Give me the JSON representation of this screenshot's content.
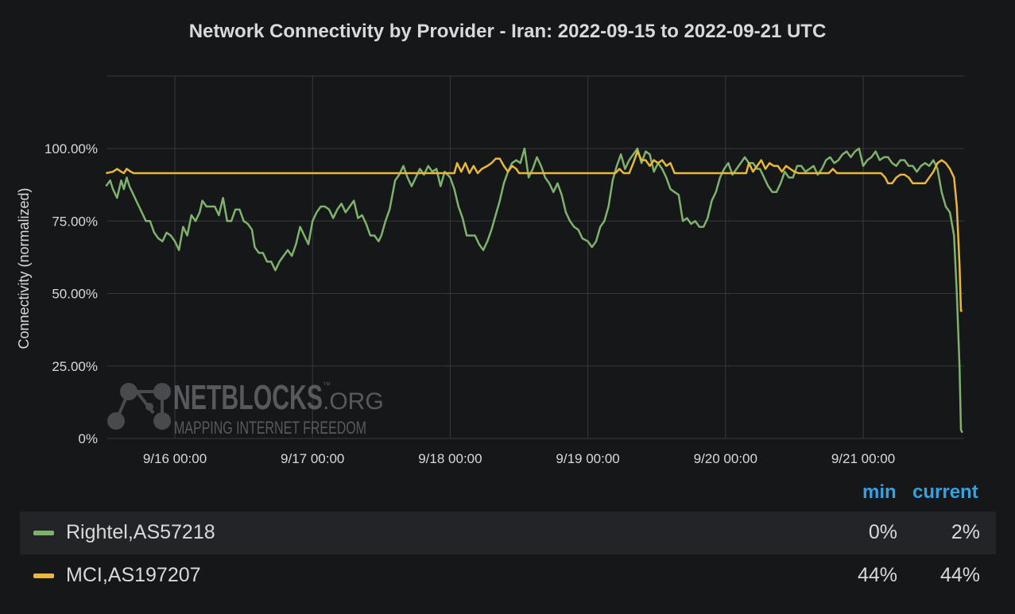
{
  "chart_data": {
    "type": "line",
    "title": "Network Connectivity by Provider - Iran: 2022-09-15 to 2022-09-21 UTC",
    "ylabel": "Connectivity (normalized)",
    "xlabel": "",
    "x_unit": "day (UTC, September 2022)",
    "xlim": [
      15.5,
      21.75
    ],
    "ylim": [
      0,
      125
    ],
    "grid": true,
    "x_ticks": [
      {
        "value": 16,
        "label": "9/16 00:00"
      },
      {
        "value": 17,
        "label": "9/17 00:00"
      },
      {
        "value": 18,
        "label": "9/18 00:00"
      },
      {
        "value": 19,
        "label": "9/19 00:00"
      },
      {
        "value": 20,
        "label": "9/20 00:00"
      },
      {
        "value": 21,
        "label": "9/21 00:00"
      }
    ],
    "y_ticks": [
      {
        "value": 0,
        "label": "0%"
      },
      {
        "value": 25,
        "label": "25.00%"
      },
      {
        "value": 50,
        "label": "50.00%"
      },
      {
        "value": 75,
        "label": "75.00%"
      },
      {
        "value": 100,
        "label": "100.00%"
      }
    ],
    "series": [
      {
        "name": "Rightel,AS57218",
        "color": "#7eb26d",
        "points": [
          [
            15.5,
            87
          ],
          [
            15.53,
            89
          ],
          [
            15.55,
            86
          ],
          [
            15.58,
            83
          ],
          [
            15.61,
            89
          ],
          [
            15.63,
            86
          ],
          [
            15.65,
            90
          ],
          [
            15.67,
            87
          ],
          [
            15.7,
            84
          ],
          [
            15.73,
            81
          ],
          [
            15.76,
            78
          ],
          [
            15.79,
            75
          ],
          [
            15.82,
            75
          ],
          [
            15.85,
            71
          ],
          [
            15.88,
            69
          ],
          [
            15.91,
            68
          ],
          [
            15.94,
            71
          ],
          [
            15.97,
            70
          ],
          [
            16.0,
            68
          ],
          [
            16.03,
            65
          ],
          [
            16.06,
            73
          ],
          [
            16.09,
            70
          ],
          [
            16.12,
            77
          ],
          [
            16.15,
            75
          ],
          [
            16.18,
            78
          ],
          [
            16.2,
            82
          ],
          [
            16.23,
            80
          ],
          [
            16.26,
            80
          ],
          [
            16.29,
            80
          ],
          [
            16.32,
            77
          ],
          [
            16.35,
            83
          ],
          [
            16.38,
            75
          ],
          [
            16.41,
            75
          ],
          [
            16.44,
            79
          ],
          [
            16.47,
            79
          ],
          [
            16.5,
            75
          ],
          [
            16.53,
            74
          ],
          [
            16.56,
            72
          ],
          [
            16.58,
            66
          ],
          [
            16.61,
            64
          ],
          [
            16.64,
            64
          ],
          [
            16.67,
            61
          ],
          [
            16.7,
            61
          ],
          [
            16.73,
            58
          ],
          [
            16.76,
            61
          ],
          [
            16.79,
            63
          ],
          [
            16.82,
            65
          ],
          [
            16.85,
            63
          ],
          [
            16.88,
            67
          ],
          [
            16.91,
            73
          ],
          [
            16.94,
            70
          ],
          [
            16.97,
            67
          ],
          [
            17.0,
            75
          ],
          [
            17.03,
            78
          ],
          [
            17.06,
            80
          ],
          [
            17.09,
            80
          ],
          [
            17.12,
            79
          ],
          [
            17.15,
            76
          ],
          [
            17.18,
            79
          ],
          [
            17.21,
            81
          ],
          [
            17.24,
            78
          ],
          [
            17.27,
            80
          ],
          [
            17.3,
            82
          ],
          [
            17.33,
            76
          ],
          [
            17.36,
            77
          ],
          [
            17.39,
            74
          ],
          [
            17.42,
            70
          ],
          [
            17.45,
            70
          ],
          [
            17.48,
            68
          ],
          [
            17.5,
            70
          ],
          [
            17.53,
            75
          ],
          [
            17.56,
            79
          ],
          [
            17.6,
            89
          ],
          [
            17.63,
            91
          ],
          [
            17.66,
            94
          ],
          [
            17.69,
            90
          ],
          [
            17.72,
            87
          ],
          [
            17.75,
            90
          ],
          [
            17.78,
            93
          ],
          [
            17.81,
            91
          ],
          [
            17.84,
            94
          ],
          [
            17.87,
            92
          ],
          [
            17.9,
            93
          ],
          [
            17.93,
            87
          ],
          [
            17.96,
            92
          ],
          [
            18.0,
            90
          ],
          [
            18.03,
            86
          ],
          [
            18.06,
            80
          ],
          [
            18.09,
            76
          ],
          [
            18.12,
            70
          ],
          [
            18.15,
            70
          ],
          [
            18.18,
            70
          ],
          [
            18.21,
            67
          ],
          [
            18.24,
            65
          ],
          [
            18.27,
            68
          ],
          [
            18.3,
            72
          ],
          [
            18.33,
            77
          ],
          [
            18.36,
            82
          ],
          [
            18.39,
            88
          ],
          [
            18.42,
            92
          ],
          [
            18.45,
            95
          ],
          [
            18.48,
            96
          ],
          [
            18.51,
            95
          ],
          [
            18.54,
            100
          ],
          [
            18.57,
            90
          ],
          [
            18.6,
            93
          ],
          [
            18.63,
            97
          ],
          [
            18.66,
            94
          ],
          [
            18.69,
            90
          ],
          [
            18.72,
            88
          ],
          [
            18.75,
            85
          ],
          [
            18.78,
            88
          ],
          [
            18.81,
            84
          ],
          [
            18.84,
            78
          ],
          [
            18.87,
            75
          ],
          [
            18.9,
            73
          ],
          [
            18.93,
            72
          ],
          [
            18.96,
            69
          ],
          [
            19.0,
            68
          ],
          [
            19.03,
            66
          ],
          [
            19.06,
            68
          ],
          [
            19.09,
            73
          ],
          [
            19.12,
            75
          ],
          [
            19.15,
            80
          ],
          [
            19.18,
            89
          ],
          [
            19.21,
            94
          ],
          [
            19.24,
            98
          ],
          [
            19.27,
            93
          ],
          [
            19.3,
            96
          ],
          [
            19.33,
            98
          ],
          [
            19.36,
            100
          ],
          [
            19.39,
            95
          ],
          [
            19.42,
            99
          ],
          [
            19.45,
            98
          ],
          [
            19.48,
            92
          ],
          [
            19.51,
            95
          ],
          [
            19.54,
            93
          ],
          [
            19.57,
            90
          ],
          [
            19.6,
            86
          ],
          [
            19.63,
            85
          ],
          [
            19.66,
            84
          ],
          [
            19.69,
            75
          ],
          [
            19.72,
            76
          ],
          [
            19.75,
            74
          ],
          [
            19.78,
            75
          ],
          [
            19.81,
            73
          ],
          [
            19.84,
            73
          ],
          [
            19.87,
            76
          ],
          [
            19.9,
            82
          ],
          [
            19.93,
            85
          ],
          [
            19.96,
            90
          ],
          [
            19.99,
            93
          ],
          [
            20.02,
            95
          ],
          [
            20.05,
            91
          ],
          [
            20.08,
            93
          ],
          [
            20.11,
            95
          ],
          [
            20.14,
            97
          ],
          [
            20.17,
            95
          ],
          [
            20.2,
            95
          ],
          [
            20.23,
            93
          ],
          [
            20.25,
            93
          ],
          [
            20.28,
            90
          ],
          [
            20.31,
            87
          ],
          [
            20.34,
            85
          ],
          [
            20.37,
            85
          ],
          [
            20.4,
            88
          ],
          [
            20.43,
            92
          ],
          [
            20.46,
            90
          ],
          [
            20.49,
            90
          ],
          [
            20.52,
            94
          ],
          [
            20.55,
            94
          ],
          [
            20.58,
            92
          ],
          [
            20.61,
            93
          ],
          [
            20.64,
            94
          ],
          [
            20.67,
            91
          ],
          [
            20.7,
            93
          ],
          [
            20.73,
            96
          ],
          [
            20.76,
            97
          ],
          [
            20.79,
            95
          ],
          [
            20.82,
            96
          ],
          [
            20.85,
            98
          ],
          [
            20.88,
            99
          ],
          [
            20.91,
            97
          ],
          [
            20.94,
            99
          ],
          [
            20.97,
            100
          ],
          [
            21.0,
            94
          ],
          [
            21.03,
            96
          ],
          [
            21.06,
            97
          ],
          [
            21.09,
            99
          ],
          [
            21.12,
            96
          ],
          [
            21.15,
            97
          ],
          [
            21.18,
            97
          ],
          [
            21.21,
            95
          ],
          [
            21.24,
            94
          ],
          [
            21.27,
            96
          ],
          [
            21.3,
            96
          ],
          [
            21.33,
            94
          ],
          [
            21.36,
            94
          ],
          [
            21.39,
            92
          ],
          [
            21.42,
            94
          ],
          [
            21.45,
            95
          ],
          [
            21.48,
            94
          ],
          [
            21.51,
            96
          ],
          [
            21.54,
            93
          ],
          [
            21.57,
            85
          ],
          [
            21.6,
            80
          ],
          [
            21.63,
            78
          ],
          [
            21.66,
            70
          ],
          [
            21.68,
            50
          ],
          [
            21.7,
            25
          ],
          [
            21.71,
            3
          ],
          [
            21.72,
            2
          ]
        ]
      },
      {
        "name": "MCI,AS197207",
        "color": "#eab839",
        "points": [
          [
            15.5,
            91.5
          ],
          [
            15.55,
            92
          ],
          [
            15.58,
            93
          ],
          [
            15.61,
            92
          ],
          [
            15.63,
            91.5
          ],
          [
            15.65,
            93
          ],
          [
            15.68,
            92
          ],
          [
            15.7,
            91.5
          ],
          [
            16.0,
            91.5
          ],
          [
            16.5,
            91.5
          ],
          [
            17.0,
            91.5
          ],
          [
            17.5,
            91.5
          ],
          [
            18.0,
            91.5
          ],
          [
            18.03,
            91.5
          ],
          [
            18.05,
            95
          ],
          [
            18.08,
            92
          ],
          [
            18.11,
            95
          ],
          [
            18.14,
            91.5
          ],
          [
            18.17,
            94
          ],
          [
            18.2,
            91.5
          ],
          [
            18.23,
            93
          ],
          [
            18.27,
            94
          ],
          [
            18.3,
            95
          ],
          [
            18.33,
            96.5
          ],
          [
            18.36,
            96.5
          ],
          [
            18.39,
            94
          ],
          [
            18.42,
            92
          ],
          [
            18.45,
            94
          ],
          [
            18.48,
            93
          ],
          [
            18.5,
            91.5
          ],
          [
            18.75,
            91.5
          ],
          [
            19.0,
            91.5
          ],
          [
            19.2,
            91.5
          ],
          [
            19.23,
            93
          ],
          [
            19.26,
            91.5
          ],
          [
            19.3,
            91.5
          ],
          [
            19.33,
            95
          ],
          [
            19.36,
            99
          ],
          [
            19.39,
            96
          ],
          [
            19.42,
            96
          ],
          [
            19.45,
            94
          ],
          [
            19.48,
            96
          ],
          [
            19.51,
            95
          ],
          [
            19.54,
            96
          ],
          [
            19.57,
            94
          ],
          [
            19.6,
            95
          ],
          [
            19.63,
            91.5
          ],
          [
            19.66,
            91.5
          ],
          [
            20.0,
            91.5
          ],
          [
            20.15,
            91.5
          ],
          [
            20.17,
            95
          ],
          [
            20.2,
            92
          ],
          [
            20.23,
            94
          ],
          [
            20.26,
            96
          ],
          [
            20.29,
            93
          ],
          [
            20.32,
            95
          ],
          [
            20.35,
            94
          ],
          [
            20.38,
            94
          ],
          [
            20.41,
            92
          ],
          [
            20.44,
            94
          ],
          [
            20.47,
            93
          ],
          [
            20.5,
            92
          ],
          [
            20.53,
            91.5
          ],
          [
            20.75,
            91.5
          ],
          [
            20.78,
            93
          ],
          [
            20.81,
            91.5
          ],
          [
            21.0,
            91.5
          ],
          [
            21.13,
            91.5
          ],
          [
            21.16,
            90
          ],
          [
            21.18,
            88
          ],
          [
            21.21,
            88
          ],
          [
            21.24,
            90
          ],
          [
            21.27,
            91
          ],
          [
            21.3,
            91
          ],
          [
            21.33,
            90
          ],
          [
            21.36,
            88
          ],
          [
            21.39,
            88
          ],
          [
            21.42,
            88
          ],
          [
            21.45,
            88
          ],
          [
            21.48,
            90
          ],
          [
            21.51,
            92
          ],
          [
            21.54,
            95
          ],
          [
            21.57,
            96
          ],
          [
            21.6,
            95
          ],
          [
            21.63,
            93
          ],
          [
            21.66,
            90
          ],
          [
            21.68,
            80
          ],
          [
            21.7,
            60
          ],
          [
            21.71,
            44
          ],
          [
            21.72,
            44
          ]
        ]
      }
    ],
    "legend": {
      "columns": {
        "min": "min",
        "current": "current"
      },
      "rows": [
        {
          "name": "Rightel,AS57218",
          "color": "#7eb26d",
          "min": "0%",
          "current": "2%"
        },
        {
          "name": "MCI,AS197207",
          "color": "#eab839",
          "min": "44%",
          "current": "44%"
        }
      ]
    }
  },
  "watermark": {
    "brand": "NETBLOCKS",
    "brand_suffix": ".ORG",
    "trademark": "™",
    "tagline": "MAPPING INTERNET FREEDOM"
  }
}
